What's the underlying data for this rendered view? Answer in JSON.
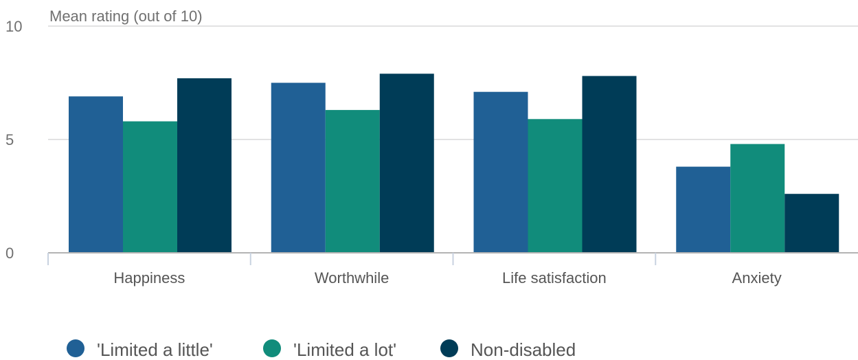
{
  "chart_data": {
    "type": "bar",
    "ylabel": "Mean rating (out of 10)",
    "ylim": [
      0,
      10
    ],
    "yticks": [
      0,
      5,
      10
    ],
    "categories": [
      "Happiness",
      "Worthwhile",
      "Life satisfaction",
      "Anxiety"
    ],
    "series": [
      {
        "name": "'Limited a little'",
        "color": "#206095",
        "values": [
          6.9,
          7.5,
          7.1,
          3.8
        ]
      },
      {
        "name": "'Limited a lot'",
        "color": "#118c7b",
        "values": [
          5.8,
          6.3,
          5.9,
          4.8
        ]
      },
      {
        "name": "Non-disabled",
        "color": "#003c57",
        "values": [
          7.7,
          7.9,
          7.8,
          2.6
        ]
      }
    ],
    "grid": true,
    "legend": "bottom-left"
  }
}
